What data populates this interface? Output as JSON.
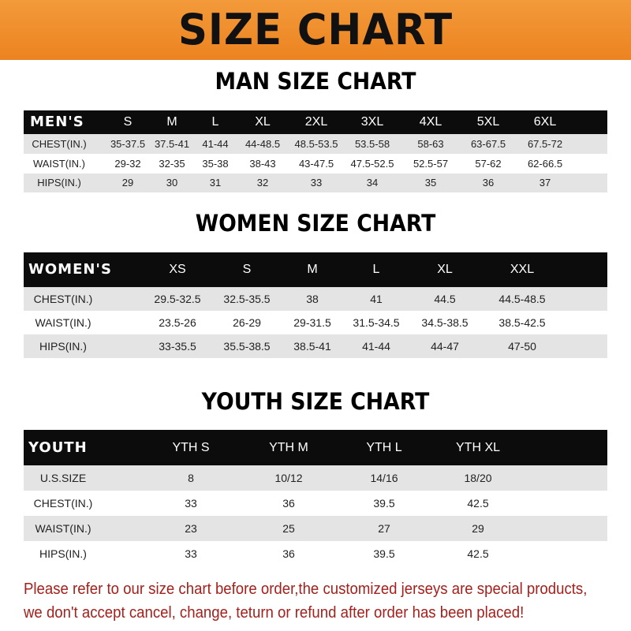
{
  "title": "SIZE CHART",
  "colors": {
    "banner": "#ec8320",
    "header_row": "#0c0c0c",
    "stripe": "#e4e4e4",
    "note": "#a3201c"
  },
  "men": {
    "title": "MAN SIZE CHART",
    "header": [
      "MEN'S",
      "S",
      "M",
      "L",
      "XL",
      "2XL",
      "3XL",
      "4XL",
      "5XL",
      "6XL"
    ],
    "rows": [
      [
        "CHEST(IN.)",
        "35-37.5",
        "37.5-41",
        "41-44",
        "44-48.5",
        "48.5-53.5",
        "53.5-58",
        "58-63",
        "63-67.5",
        "67.5-72"
      ],
      [
        "WAIST(IN.)",
        "29-32",
        "32-35",
        "35-38",
        "38-43",
        "43-47.5",
        "47.5-52.5",
        "52.5-57",
        "57-62",
        "62-66.5"
      ],
      [
        "HIPS(IN.)",
        "29",
        "30",
        "31",
        "32",
        "33",
        "34",
        "35",
        "36",
        "37"
      ]
    ]
  },
  "women": {
    "title": "WOMEN SIZE CHART",
    "header": [
      "WOMEN'S",
      "XS",
      "S",
      "M",
      "L",
      "XL",
      "XXL"
    ],
    "rows": [
      [
        "CHEST(IN.)",
        "29.5-32.5",
        "32.5-35.5",
        "38",
        "41",
        "44.5",
        "44.5-48.5"
      ],
      [
        "WAIST(IN.)",
        "23.5-26",
        "26-29",
        "29-31.5",
        "31.5-34.5",
        "34.5-38.5",
        "38.5-42.5"
      ],
      [
        "HIPS(IN.)",
        "33-35.5",
        "35.5-38.5",
        "38.5-41",
        "41-44",
        "44-47",
        "47-50"
      ]
    ]
  },
  "youth": {
    "title": "YOUTH SIZE CHART",
    "header": [
      "YOUTH",
      "YTH S",
      "YTH M",
      "YTH L",
      "YTH XL"
    ],
    "rows": [
      [
        "U.S.SIZE",
        "8",
        "10/12",
        "14/16",
        "18/20"
      ],
      [
        "CHEST(IN.)",
        "33",
        "36",
        "39.5",
        "42.5"
      ],
      [
        "WAIST(IN.)",
        "23",
        "25",
        "27",
        "29"
      ],
      [
        "HIPS(IN.)",
        "33",
        "36",
        "39.5",
        "42.5"
      ]
    ]
  },
  "note": {
    "line1": "Please refer to our size chart before order,the customized jerseys are special products,",
    "line2": "we don't accept cancel, change, teturn or refund after order has been placed!"
  }
}
